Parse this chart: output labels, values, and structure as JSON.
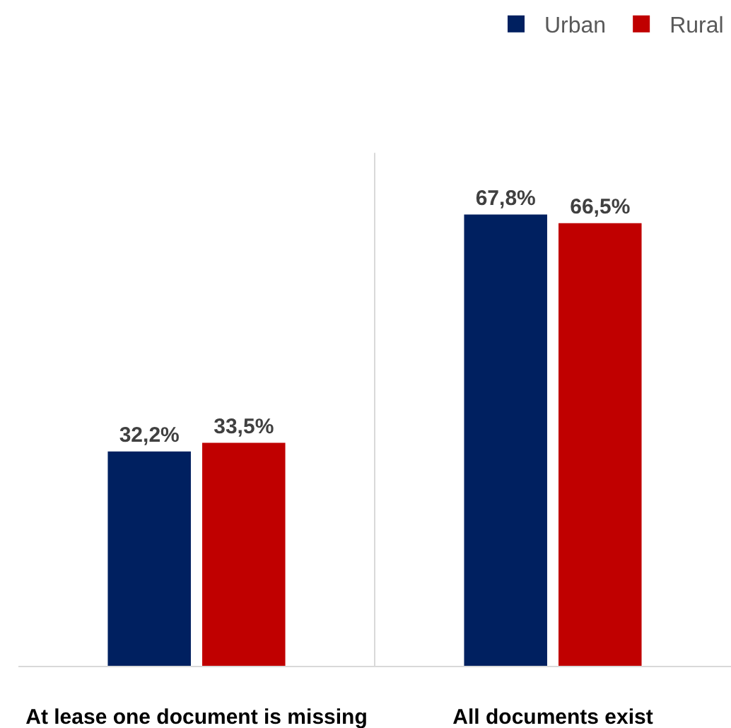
{
  "chart_data": {
    "type": "bar",
    "categories": [
      "At lease one document is missing",
      "All documents exist"
    ],
    "series": [
      {
        "name": "Urban",
        "color": "#002060",
        "values": [
          32.2,
          67.8
        ],
        "value_labels": [
          "32,2%",
          "67,8%"
        ]
      },
      {
        "name": "Rural",
        "color": "#c00000",
        "values": [
          33.5,
          66.5
        ],
        "value_labels": [
          "33,5%",
          "66,5%"
        ]
      }
    ],
    "legend": "top right",
    "grid": "x",
    "tick_labels": "x"
  }
}
